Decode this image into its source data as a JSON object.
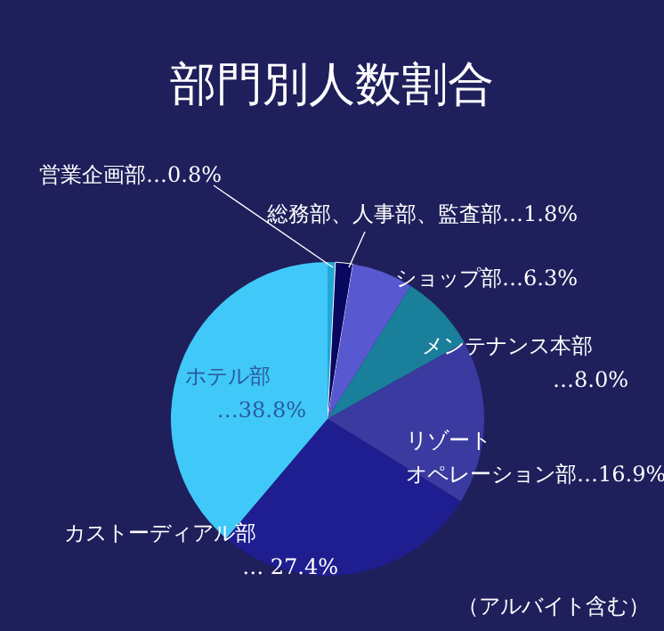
{
  "chart_data": {
    "type": "pie",
    "title": "部門別人数割合",
    "categories": [
      "営業企画部",
      "総務部、人事部、監査部",
      "ショップ部",
      "メンテナンス本部",
      "リゾートオペレーション部",
      "カストーディアル部",
      "ホテル部"
    ],
    "values": [
      0.8,
      1.8,
      6.3,
      8.0,
      16.9,
      27.4,
      38.8
    ],
    "value_labels": [
      "…0.8%",
      "…1.8%",
      "…6.3%",
      "…8.0%",
      "…16.9%",
      "… 27.4%",
      "…38.8%"
    ],
    "colors": [
      "#20a8d8",
      "#080860",
      "#5858d0",
      "#1a7f9a",
      "#3a3aa0",
      "#1e1e90",
      "#40c8f8"
    ],
    "annotations": [
      "（アルバイト含む）"
    ]
  }
}
